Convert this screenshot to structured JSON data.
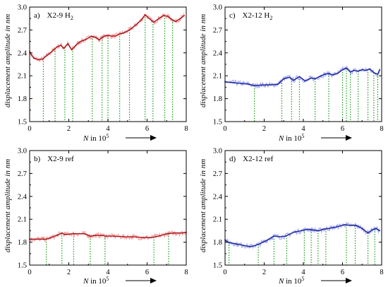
{
  "chart_data": [
    {
      "id": "a",
      "type": "line",
      "label": "a)",
      "title_main": "X2-9 H",
      "title_sub": "2",
      "color": "#e8232a",
      "band_color": "#f29a9c",
      "xlim": [
        0,
        8
      ],
      "ylim": [
        1.5,
        3.0
      ],
      "xticks": [
        "0",
        "2",
        "4",
        "6",
        "8"
      ],
      "yticks": [
        "1.5",
        "1.8",
        "2.1",
        "2.4",
        "2.7",
        "3.0"
      ],
      "series": [
        {
          "x": [
            0,
            0.22,
            0.45,
            0.68,
            0.9,
            1.15,
            1.4,
            1.6,
            1.75,
            1.95,
            2.15,
            2.4,
            2.6,
            2.9,
            3.15,
            3.4,
            3.55,
            3.75,
            3.95,
            4.2,
            4.4,
            4.6,
            4.8,
            5.1,
            5.4,
            5.7,
            5.9,
            6.15,
            6.35,
            6.6,
            6.85,
            7.05,
            7.25,
            7.45,
            7.7,
            7.9
          ],
          "y": [
            2.41,
            2.33,
            2.31,
            2.32,
            2.37,
            2.42,
            2.48,
            2.5,
            2.46,
            2.52,
            2.44,
            2.51,
            2.55,
            2.58,
            2.62,
            2.6,
            2.57,
            2.61,
            2.63,
            2.62,
            2.62,
            2.65,
            2.66,
            2.7,
            2.76,
            2.83,
            2.9,
            2.84,
            2.8,
            2.85,
            2.89,
            2.88,
            2.84,
            2.81,
            2.85,
            2.89
          ]
        }
      ],
      "drops": [
        0.7,
        1.3,
        1.8,
        2.2,
        3.2,
        3.7,
        4.0,
        4.6,
        5.1,
        5.9,
        6.3,
        6.9,
        7.3
      ]
    },
    {
      "id": "c",
      "type": "line",
      "label": "c)",
      "title_main": "X2-12 H",
      "title_sub": "2",
      "color": "#2a34d8",
      "band_color": "#9ea4ee",
      "xlim": [
        0,
        8
      ],
      "ylim": [
        1.5,
        3.0
      ],
      "xticks": [
        "0",
        "2",
        "4",
        "6",
        "8"
      ],
      "yticks": [
        "1.5",
        "1.8",
        "2.1",
        "2.4",
        "2.7",
        "3.0"
      ],
      "series": [
        {
          "x": [
            0,
            0.4,
            0.8,
            1.2,
            1.5,
            1.9,
            2.3,
            2.7,
            3.0,
            3.3,
            3.5,
            3.8,
            4.1,
            4.4,
            4.6,
            4.9,
            5.1,
            5.3,
            5.5,
            5.8,
            6.0,
            6.2,
            6.4,
            6.6,
            6.8,
            7.0,
            7.2,
            7.4,
            7.6,
            7.8,
            7.9
          ],
          "y": [
            2.02,
            2.01,
            2.0,
            1.99,
            1.97,
            1.98,
            1.98,
            1.99,
            2.06,
            2.08,
            2.04,
            2.09,
            2.03,
            2.07,
            2.06,
            2.1,
            2.12,
            2.13,
            2.11,
            2.14,
            2.18,
            2.2,
            2.15,
            2.17,
            2.16,
            2.18,
            2.17,
            2.19,
            2.14,
            2.12,
            2.18
          ]
        }
      ],
      "drops": [
        1.5,
        2.9,
        3.4,
        3.8,
        4.6,
        5.3,
        6.0,
        6.2,
        6.4,
        6.8,
        7.3,
        7.6,
        7.8
      ]
    },
    {
      "id": "b",
      "type": "line",
      "label": "b)",
      "title_main": "X2-9 ref",
      "title_sub": "",
      "color": "#e8232a",
      "band_color": "#f29a9c",
      "xlim": [
        0,
        8
      ],
      "ylim": [
        1.5,
        3.0
      ],
      "xticks": [
        "0",
        "2",
        "4",
        "6",
        "8"
      ],
      "yticks": [
        "1.5",
        "1.8",
        "2.1",
        "2.4",
        "2.7",
        "3.0"
      ],
      "series": [
        {
          "x": [
            0,
            0.4,
            0.85,
            1.1,
            1.4,
            1.65,
            1.8,
            2.2,
            2.5,
            2.8,
            3.1,
            3.4,
            3.7,
            3.9,
            4.3,
            4.8,
            5.3,
            5.8,
            6.2,
            6.6,
            7.0,
            7.4,
            7.8,
            8.0
          ],
          "y": [
            1.84,
            1.84,
            1.84,
            1.86,
            1.89,
            1.92,
            1.9,
            1.91,
            1.91,
            1.91,
            1.88,
            1.89,
            1.89,
            1.88,
            1.88,
            1.87,
            1.87,
            1.86,
            1.86,
            1.88,
            1.91,
            1.92,
            1.92,
            1.93
          ]
        }
      ],
      "drops": [
        0.85,
        1.65,
        2.25,
        3.1,
        3.85,
        6.35,
        7.1
      ]
    },
    {
      "id": "d",
      "type": "line",
      "label": "d)",
      "title_main": "X2-12 ref",
      "title_sub": "",
      "color": "#2a34d8",
      "band_color": "#9ea4ee",
      "xlim": [
        0,
        8
      ],
      "ylim": [
        1.5,
        3.0
      ],
      "xticks": [
        "0",
        "2",
        "4",
        "6",
        "8"
      ],
      "yticks": [
        "1.5",
        "1.8",
        "2.1",
        "2.4",
        "2.7",
        "3.0"
      ],
      "series": [
        {
          "x": [
            0,
            0.15,
            0.5,
            0.9,
            1.3,
            1.7,
            2.1,
            2.5,
            2.8,
            3.1,
            3.5,
            3.9,
            4.2,
            4.5,
            4.8,
            5.0,
            5.3,
            5.7,
            6.1,
            6.4,
            6.7,
            7.0,
            7.3,
            7.5,
            7.7,
            7.9
          ],
          "y": [
            1.83,
            1.8,
            1.78,
            1.76,
            1.74,
            1.77,
            1.82,
            1.88,
            1.87,
            1.88,
            1.93,
            1.95,
            1.97,
            1.96,
            1.95,
            1.97,
            1.98,
            2.0,
            2.03,
            2.02,
            2.02,
            1.98,
            1.92,
            1.96,
            1.98,
            1.95
          ]
        }
      ],
      "drops": [
        0.2,
        1.7,
        2.5,
        3.15,
        4.05,
        4.4,
        4.75,
        5.15,
        6.2,
        6.65,
        7.3,
        7.65
      ]
    }
  ],
  "ylabel": "displacement amplitude in nm",
  "xlabel_main": "N",
  "xlabel_rest": " in 10",
  "xlabel_exp": "5"
}
